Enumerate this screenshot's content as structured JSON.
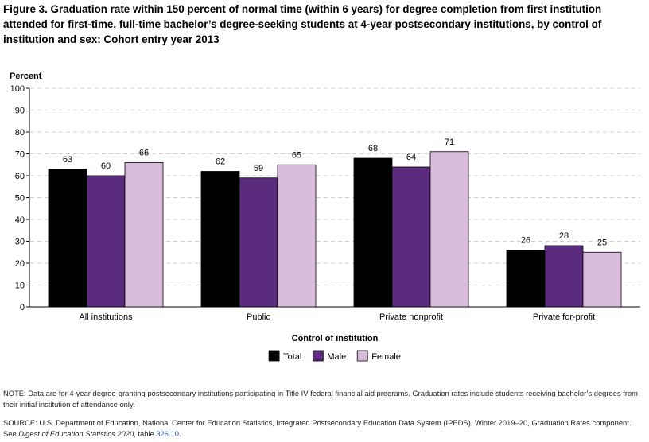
{
  "title": "Figure 3. Graduation rate within 150 percent of normal time (within 6 years) for degree completion from first institution attended for first-time, full-time bachelor’s degree-seeking students at 4-year postsecondary institutions, by control of institution and sex: Cohort entry year 2013",
  "chart_data": {
    "type": "bar",
    "ylabel": "Percent",
    "xlabel": "Control of institution",
    "ylim": [
      0,
      100
    ],
    "yticks": [
      0,
      10,
      20,
      30,
      40,
      50,
      60,
      70,
      80,
      90,
      100
    ],
    "grid": true,
    "legend_position": "bottom",
    "categories": [
      "All institutions",
      "Public",
      "Private nonprofit",
      "Private for-profit"
    ],
    "series": [
      {
        "name": "Total",
        "color": "#000000",
        "values": [
          63,
          62,
          68,
          26
        ]
      },
      {
        "name": "Male",
        "color": "#5b2c7d",
        "values": [
          60,
          59,
          64,
          28
        ]
      },
      {
        "name": "Female",
        "color": "#d9bcdc",
        "values": [
          66,
          65,
          71,
          25
        ]
      }
    ]
  },
  "notes": {
    "note": "NOTE: Data are for 4-year degree-granting postsecondary institutions participating in Title IV federal financial aid programs. Graduation rates include students receiving bachelor’s degrees from their initial institution of attendance only.",
    "source_prefix": "SOURCE: U.S. Department of Education, National Center for Education Statistics, Integrated Postsecondary Education Data System (IPEDS), Winter 2019–20, Graduation Rates component. See ",
    "source_pub": "Digest of Education Statistics 2020",
    "source_mid": ", table ",
    "source_table": "326.10",
    "source_end": "."
  }
}
